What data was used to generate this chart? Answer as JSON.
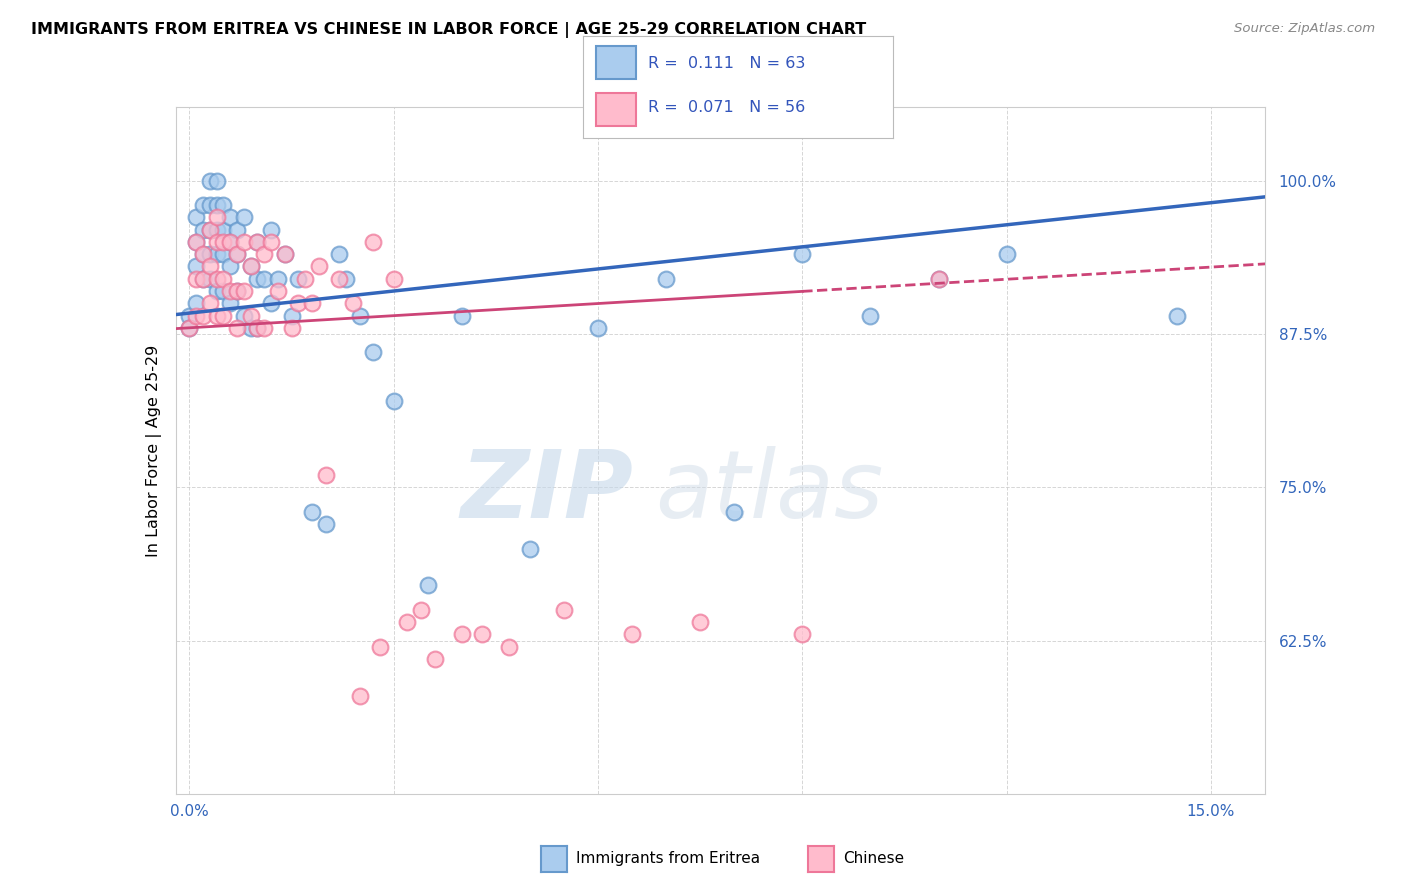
{
  "title": "IMMIGRANTS FROM ERITREA VS CHINESE IN LABOR FORCE | AGE 25-29 CORRELATION CHART",
  "source": "Source: ZipAtlas.com",
  "ylabel": "In Labor Force | Age 25-29",
  "series1_label": "Immigrants from Eritrea",
  "series2_label": "Chinese",
  "R1": 0.111,
  "N1": 63,
  "R2": 0.071,
  "N2": 56,
  "series1_color": "#6699cc",
  "series1_fill": "#aaccee",
  "series2_color": "#ee7799",
  "series2_fill": "#ffbbcc",
  "trend_color1": "#3366bb",
  "trend_color2": "#cc4477",
  "legend_text_color": "#3355bb",
  "y_ticks": [
    0.625,
    0.75,
    0.875,
    1.0
  ],
  "y_ticklabels": [
    "62.5%",
    "75.0%",
    "87.5%",
    "100.0%"
  ],
  "x_ticks": [
    0.0,
    0.03,
    0.06,
    0.09,
    0.12,
    0.15
  ],
  "x_ticklabels": [
    "0.0%",
    "",
    "",
    "",
    "",
    "15.0%"
  ],
  "y_lim": [
    0.5,
    1.06
  ],
  "x_lim": [
    -0.002,
    0.158
  ],
  "series1_x": [
    0.0,
    0.0,
    0.001,
    0.001,
    0.001,
    0.001,
    0.002,
    0.002,
    0.002,
    0.002,
    0.003,
    0.003,
    0.003,
    0.003,
    0.003,
    0.004,
    0.004,
    0.004,
    0.004,
    0.004,
    0.005,
    0.005,
    0.005,
    0.005,
    0.006,
    0.006,
    0.006,
    0.006,
    0.007,
    0.007,
    0.007,
    0.008,
    0.008,
    0.009,
    0.009,
    0.01,
    0.01,
    0.01,
    0.011,
    0.012,
    0.012,
    0.013,
    0.014,
    0.015,
    0.016,
    0.018,
    0.02,
    0.022,
    0.023,
    0.025,
    0.027,
    0.03,
    0.035,
    0.04,
    0.05,
    0.06,
    0.07,
    0.08,
    0.09,
    0.1,
    0.11,
    0.12,
    0.145
  ],
  "series1_y": [
    0.89,
    0.88,
    0.97,
    0.95,
    0.93,
    0.9,
    0.98,
    0.96,
    0.94,
    0.92,
    1.0,
    0.98,
    0.96,
    0.94,
    0.92,
    1.0,
    0.98,
    0.96,
    0.94,
    0.91,
    0.98,
    0.96,
    0.94,
    0.91,
    0.97,
    0.95,
    0.93,
    0.9,
    0.96,
    0.94,
    0.91,
    0.97,
    0.89,
    0.93,
    0.88,
    0.95,
    0.92,
    0.88,
    0.92,
    0.96,
    0.9,
    0.92,
    0.94,
    0.89,
    0.92,
    0.73,
    0.72,
    0.94,
    0.92,
    0.89,
    0.86,
    0.82,
    0.67,
    0.89,
    0.7,
    0.88,
    0.92,
    0.73,
    0.94,
    0.89,
    0.92,
    0.94,
    0.89
  ],
  "series2_x": [
    0.0,
    0.001,
    0.001,
    0.001,
    0.002,
    0.002,
    0.002,
    0.003,
    0.003,
    0.003,
    0.004,
    0.004,
    0.004,
    0.004,
    0.005,
    0.005,
    0.005,
    0.006,
    0.006,
    0.007,
    0.007,
    0.007,
    0.008,
    0.008,
    0.009,
    0.009,
    0.01,
    0.01,
    0.011,
    0.011,
    0.012,
    0.013,
    0.014,
    0.015,
    0.016,
    0.017,
    0.018,
    0.019,
    0.02,
    0.022,
    0.024,
    0.025,
    0.027,
    0.028,
    0.03,
    0.032,
    0.034,
    0.036,
    0.04,
    0.043,
    0.047,
    0.055,
    0.065,
    0.075,
    0.09,
    0.11
  ],
  "series2_y": [
    0.88,
    0.95,
    0.92,
    0.89,
    0.94,
    0.92,
    0.89,
    0.96,
    0.93,
    0.9,
    0.97,
    0.95,
    0.92,
    0.89,
    0.95,
    0.92,
    0.89,
    0.95,
    0.91,
    0.94,
    0.91,
    0.88,
    0.95,
    0.91,
    0.93,
    0.89,
    0.95,
    0.88,
    0.94,
    0.88,
    0.95,
    0.91,
    0.94,
    0.88,
    0.9,
    0.92,
    0.9,
    0.93,
    0.76,
    0.92,
    0.9,
    0.58,
    0.95,
    0.62,
    0.92,
    0.64,
    0.65,
    0.61,
    0.63,
    0.63,
    0.62,
    0.65,
    0.63,
    0.64,
    0.63,
    0.92
  ]
}
